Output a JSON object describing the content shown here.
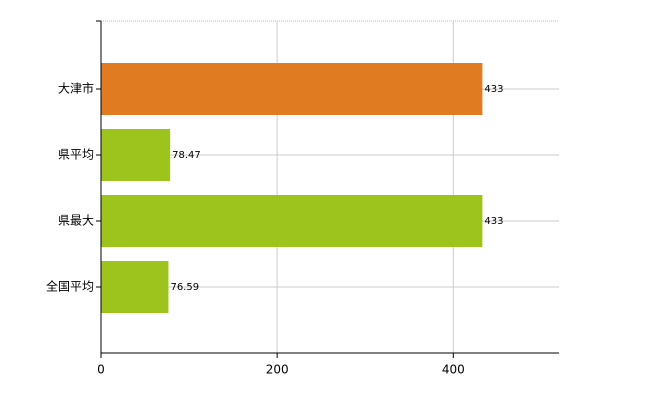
{
  "chart_data": {
    "type": "hbar",
    "categories": [
      "大津市",
      "県平均",
      "県最大",
      "全国平均"
    ],
    "values": [
      433,
      78.47,
      433,
      76.59
    ],
    "colors": [
      "#e07b22",
      "#9dc41c",
      "#9dc41c",
      "#9dc41c"
    ],
    "xlim": [
      0,
      520
    ],
    "xticks": [
      0,
      200,
      400
    ],
    "grid": true
  }
}
